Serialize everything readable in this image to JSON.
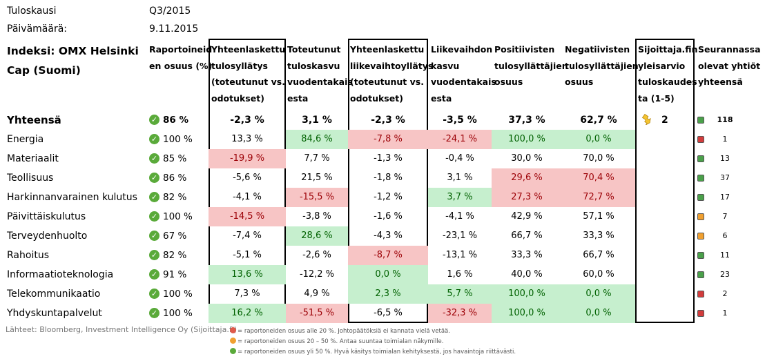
{
  "meta": {
    "period_label": "Tuloskausi",
    "period_value": "Q3/2015",
    "date_label": "Päivämäärä:",
    "date_value": "9.11.2015"
  },
  "index_title": [
    "Indeksi: OMX Helsinki",
    "Cap (Suomi)"
  ],
  "headers": {
    "reported": [
      "Raportoineid",
      "en osuus (%)"
    ],
    "earnings_surprise": [
      "Yhteenlaskettu",
      "tulosyllätys",
      "(toteutunut vs.",
      "odotukset)"
    ],
    "earnings_growth": [
      "Toteutunut",
      "tuloskasvu",
      "vuodentakais",
      "esta"
    ],
    "revenue_surprise": [
      "Yhteenlaskettu",
      "liikevaihtoyllätys",
      "(toteutunut vs.",
      "odotukset)"
    ],
    "revenue_growth": [
      "Liikevaihdon",
      "kasvu",
      "vuodentakais",
      "esta"
    ],
    "positive": [
      "Positiivisten",
      "tulosyllättäjien",
      "osuus"
    ],
    "negative": [
      "Negatiivisten",
      "tulosyllättäjien",
      "osuus"
    ],
    "estimate": [
      "Sijoittaja.fin",
      "yleisarvio",
      "tuloskaudes",
      "ta (1-5)"
    ],
    "followed": [
      "Seurannassa",
      "olevat yhtiöt",
      "yhteensä"
    ]
  },
  "estimate_score": "2",
  "rows": [
    {
      "name": "Yhteensä",
      "rep": "86 %",
      "es": "-2,3 %",
      "eg": "3,1 %",
      "rs": "-2,3 %",
      "rg": "-3,5 %",
      "pos": "37,3 %",
      "neg": "62,7 %",
      "count": "118",
      "dot": "green"
    },
    {
      "name": "Energia",
      "rep": "100 %",
      "es": "13,3 %",
      "eg": "84,6 %",
      "rs": "-7,8 %",
      "rg": "-24,1 %",
      "pos": "100,0 %",
      "neg": "0,0 %",
      "count": "1",
      "dot": "red"
    },
    {
      "name": "Materiaalit",
      "rep": "85 %",
      "es": "-19,9 %",
      "eg": "7,7 %",
      "rs": "-1,3 %",
      "rg": "-0,4 %",
      "pos": "30,0 %",
      "neg": "70,0 %",
      "count": "13",
      "dot": "green"
    },
    {
      "name": "Teollisuus",
      "rep": "86 %",
      "es": "-5,6 %",
      "eg": "21,5 %",
      "rs": "-1,8 %",
      "rg": "3,1 %",
      "pos": "29,6 %",
      "neg": "70,4 %",
      "count": "37",
      "dot": "green"
    },
    {
      "name": "Harkinnanvarainen kulutus",
      "rep": "82 %",
      "es": "-4,1 %",
      "eg": "-15,5 %",
      "rs": "-1,2 %",
      "rg": "3,7 %",
      "pos": "27,3 %",
      "neg": "72,7 %",
      "count": "17",
      "dot": "green"
    },
    {
      "name": "Päivittäiskulutus",
      "rep": "100 %",
      "es": "-14,5 %",
      "eg": "-3,8 %",
      "rs": "-1,6 %",
      "rg": "-4,1 %",
      "pos": "42,9 %",
      "neg": "57,1 %",
      "count": "7",
      "dot": "orange"
    },
    {
      "name": "Terveydenhuolto",
      "rep": "67 %",
      "es": "-7,4 %",
      "eg": "28,6 %",
      "rs": "-4,3 %",
      "rg": "-23,1 %",
      "pos": "66,7 %",
      "neg": "33,3 %",
      "count": "6",
      "dot": "orange"
    },
    {
      "name": "Rahoitus",
      "rep": "82 %",
      "es": "-5,1 %",
      "eg": "-2,6 %",
      "rs": "-8,7 %",
      "rg": "-13,1 %",
      "pos": "33,3 %",
      "neg": "66,7 %",
      "count": "11",
      "dot": "green"
    },
    {
      "name": "Informaatioteknologia",
      "rep": "91 %",
      "es": "13,6 %",
      "eg": "-12,2 %",
      "rs": "0,0 %",
      "rg": "1,6 %",
      "pos": "40,0 %",
      "neg": "60,0 %",
      "count": "23",
      "dot": "green"
    },
    {
      "name": "Telekommunikaatio",
      "rep": "100 %",
      "es": "7,3 %",
      "eg": "4,9 %",
      "rs": "2,3 %",
      "rg": "5,7 %",
      "pos": "100,0 %",
      "neg": "0,0 %",
      "count": "2",
      "dot": "red"
    },
    {
      "name": "Yhdyskuntapalvelut",
      "rep": "100 %",
      "es": "16,2 %",
      "eg": "-51,5 %",
      "rs": "-6,5 %",
      "rg": "-32,3 %",
      "pos": "100,0 %",
      "neg": "0,0 %",
      "count": "1",
      "dot": "red"
    }
  ],
  "highlights": {
    "Energia": {
      "eg": "green",
      "rs": "red",
      "rg": "red",
      "pos": "green",
      "neg": "green"
    },
    "Materiaalit": {
      "es": "red"
    },
    "Teollisuus": {
      "pos": "red",
      "neg": "red"
    },
    "Harkinnanvarainen kulutus": {
      "eg": "red",
      "rg": "green",
      "pos": "red",
      "neg": "red"
    },
    "Päivittäiskulutus": {
      "es": "red"
    },
    "Terveydenhuolto": {
      "eg": "green"
    },
    "Rahoitus": {
      "rs": "red"
    },
    "Informaatioteknologia": {
      "es": "green",
      "rs": "green"
    },
    "Telekommunikaatio": {
      "rs": "green",
      "rg": "green",
      "pos": "green",
      "neg": "green"
    },
    "Yhdyskuntapalvelut": {
      "es": "green",
      "eg": "red",
      "rg": "red",
      "pos": "green",
      "neg": "green"
    }
  },
  "colors": {
    "red_bg": "#f7c5c5",
    "green_bg": "#c6efce",
    "red_text": "#9c0006",
    "green_text": "#006100",
    "dot_green": "#4aa04a",
    "dot_red": "#d23c3c",
    "dot_orange": "#f0a030"
  },
  "footer": {
    "source": "Lähteet: Bloomberg, Investment Intelligence Oy (Sijoittaja.fi)",
    "legend_red": "= raportoneiden osuus alle 20 %. Johtopäätöksiä ei kannata vielä vetää.",
    "legend_orange": "= raportoneiden osuus 20 – 50 %. Antaa suuntaa toimialan näkymille.",
    "legend_green": "= raportoneiden osuus yli 50 %. Hyvä käsitys toimialan kehityksestä, jos havaintoja riittävästi."
  },
  "icons": {
    "check": "check-circle-icon",
    "arrow": "arrow-down-right-icon"
  }
}
